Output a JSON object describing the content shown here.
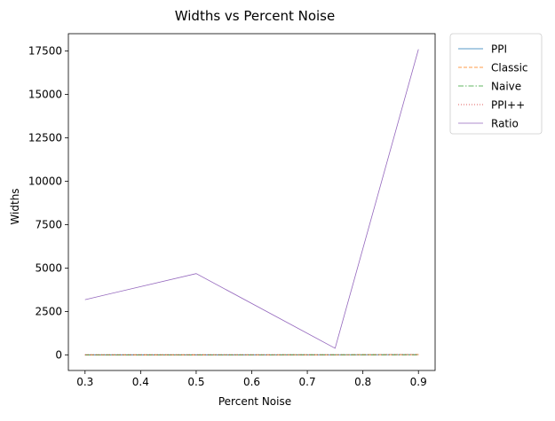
{
  "chart_data": {
    "type": "line",
    "title": "Widths vs Percent Noise",
    "xlabel": "Percent Noise",
    "ylabel": "Widths",
    "x": [
      0.3,
      0.5,
      0.75,
      0.9
    ],
    "xlim": [
      0.27,
      0.93
    ],
    "ylim": [
      -900,
      18500
    ],
    "xticks": [
      0.3,
      0.4,
      0.5,
      0.6,
      0.7,
      0.8,
      0.9
    ],
    "xtick_labels": [
      "0.3",
      "0.4",
      "0.5",
      "0.6",
      "0.7",
      "0.8",
      "0.9"
    ],
    "yticks": [
      0,
      2500,
      5000,
      7500,
      10000,
      12500,
      15000,
      17500
    ],
    "ytick_labels": [
      "0",
      "2500",
      "5000",
      "7500",
      "10000",
      "12500",
      "15000",
      "17500"
    ],
    "grid": false,
    "legend_position": "outside-upper-right",
    "series": [
      {
        "name": "PPI",
        "values": [
          2,
          3,
          5,
          12
        ],
        "color": "#1f77b4",
        "dash": "solid"
      },
      {
        "name": "Classic",
        "values": [
          3,
          4,
          6,
          15
        ],
        "color": "#ff7f0e",
        "dash": "dashed"
      },
      {
        "name": "Naive",
        "values": [
          1,
          1,
          2,
          4
        ],
        "color": "#2ca02c",
        "dash": "dashdot"
      },
      {
        "name": "PPI++",
        "values": [
          2,
          3,
          4,
          11
        ],
        "color": "#d62728",
        "dash": "dotted"
      },
      {
        "name": "Ratio",
        "values": [
          3180,
          4680,
          380,
          17600
        ],
        "color": "#9467bd",
        "dash": "solid"
      }
    ]
  }
}
